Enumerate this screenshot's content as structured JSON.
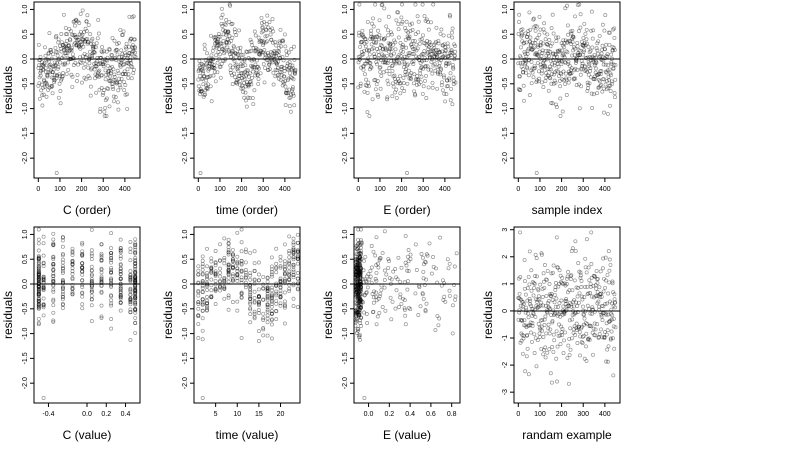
{
  "figure": {
    "ylabel": "residuals"
  },
  "chart_data": [
    {
      "type": "scatter",
      "xlabel": "C (order)",
      "ylabel": "residuals",
      "xlim": [
        -20,
        470
      ],
      "ylim": [
        -2.4,
        1.15
      ],
      "xticks": [
        0,
        100,
        200,
        300,
        400
      ],
      "xtick_labels": [
        "0",
        "100",
        "200",
        "300",
        "400"
      ],
      "yticks": [
        -2.0,
        -1.5,
        -1.0,
        -0.5,
        0.0,
        0.5,
        1.0
      ],
      "ytick_labels": [
        "-2.0",
        "-1.5",
        "-1.0",
        "-0.5",
        "0.0",
        "0.5",
        "1.0"
      ],
      "reference_line_y": 0,
      "n_points": 450,
      "pattern": "sinusoidal trend over index: about -0.3 near 0, peak about 0.4 near 250, about -0.2 near 400",
      "outliers": [
        {
          "x": 85,
          "y": -2.3
        }
      ],
      "points_note": "individual residual values are not printed; representative points in script"
    },
    {
      "type": "scatter",
      "xlabel": "time (order)",
      "ylabel": "residuals",
      "xlim": [
        -20,
        470
      ],
      "ylim": [
        -2.4,
        1.15
      ],
      "xticks": [
        0,
        100,
        200,
        300,
        400
      ],
      "xtick_labels": [
        "0",
        "100",
        "200",
        "300",
        "400"
      ],
      "yticks": [
        -2.0,
        -1.5,
        -1.0,
        -0.5,
        0.0,
        0.5,
        1.0
      ],
      "ytick_labels": [
        "-2.0",
        "-1.5",
        "-1.0",
        "-0.5",
        "0.0",
        "0.5",
        "1.0"
      ],
      "reference_line_y": 0,
      "n_points": 450,
      "pattern": "periodic: peaks near 120 and 320, troughs near 0, 220 and 450",
      "outliers": [
        {
          "x": 10,
          "y": -2.3
        }
      ],
      "points_note": "individual residual values are not printed; representative points in script"
    },
    {
      "type": "scatter",
      "xlabel": "E (order)",
      "ylabel": "residuals",
      "xlim": [
        -20,
        470
      ],
      "ylim": [
        -2.4,
        1.15
      ],
      "xticks": [
        0,
        100,
        200,
        300,
        400
      ],
      "xtick_labels": [
        "0",
        "100",
        "200",
        "300",
        "400"
      ],
      "yticks": [
        -2.0,
        -1.5,
        -1.0,
        -0.5,
        0.0,
        0.5,
        1.0
      ],
      "ytick_labels": [
        "-2.0",
        "-1.5",
        "-1.0",
        "-0.5",
        "0.0",
        "0.5",
        "1.0"
      ],
      "reference_line_y": 0,
      "n_points": 450,
      "pattern": "no trend, points scattered between -1.0 and 1.0",
      "outliers": [
        {
          "x": 225,
          "y": -2.3
        }
      ],
      "points_note": "individual residual values are not printed; representative points in script"
    },
    {
      "type": "scatter",
      "xlabel": "sample index",
      "ylabel": "residuals",
      "xlim": [
        -20,
        470
      ],
      "ylim": [
        -2.4,
        1.15
      ],
      "xticks": [
        0,
        100,
        200,
        300,
        400
      ],
      "xtick_labels": [
        "0",
        "100",
        "200",
        "300",
        "400"
      ],
      "yticks": [
        -2.0,
        -1.5,
        -1.0,
        -0.5,
        0.0,
        0.5,
        1.0
      ],
      "ytick_labels": [
        "-2.0",
        "-1.5",
        "-1.0",
        "-0.5",
        "0.0",
        "0.5",
        "1.0"
      ],
      "reference_line_y": 0,
      "n_points": 450,
      "pattern": "mild waviness around 0, most points between -1.0 and 1.0",
      "outliers": [
        {
          "x": 85,
          "y": -2.3
        }
      ],
      "points_note": "individual residual values are not printed; representative points in script"
    },
    {
      "type": "scatter",
      "xlabel": "C (value)",
      "ylabel": "residuals",
      "xlim": [
        -0.55,
        0.55
      ],
      "ylim": [
        -2.4,
        1.15
      ],
      "xticks": [
        -0.4,
        0.0,
        0.2,
        0.4
      ],
      "xtick_labels": [
        "-0.4",
        "0.0",
        "0.2",
        "0.4"
      ],
      "yticks": [
        -2.0,
        -1.5,
        -1.0,
        -0.5,
        0.0,
        0.5,
        1.0
      ],
      "ytick_labels": [
        "-2.0",
        "-1.5",
        "-1.0",
        "-0.5",
        "0.0",
        "0.5",
        "1.0"
      ],
      "reference_line_y": 0,
      "n_points": 450,
      "pattern": "points at discrete x levels, dense vertical stacks at -0.5 and 0.5",
      "outliers": [
        {
          "x": -0.45,
          "y": -2.3
        }
      ],
      "points_note": "individual residual values are not printed; representative points in script"
    },
    {
      "type": "scatter",
      "xlabel": "time (value)",
      "ylabel": "residuals",
      "xlim": [
        0,
        24.5
      ],
      "ylim": [
        -2.4,
        1.15
      ],
      "xticks": [
        5,
        10,
        15,
        20
      ],
      "xtick_labels": [
        "5",
        "10",
        "15",
        "20"
      ],
      "yticks": [
        -2.0,
        -1.5,
        -1.0,
        -0.5,
        0.0,
        0.5,
        1.0
      ],
      "ytick_labels": [
        "-2.0",
        "-1.5",
        "-1.0",
        "-0.5",
        "0.0",
        "0.5",
        "1.0"
      ],
      "reference_line_y": 0,
      "n_points": 450,
      "pattern": "points at integer x values 1 to 24, periodic over the day",
      "outliers": [
        {
          "x": 2,
          "y": -2.3
        }
      ],
      "points_note": "individual residual values are not printed; representative points in script"
    },
    {
      "type": "scatter",
      "xlabel": "E (value)",
      "ylabel": "residuals",
      "xlim": [
        -0.14,
        0.88
      ],
      "ylim": [
        -2.4,
        1.15
      ],
      "xticks": [
        0.0,
        0.2,
        0.4,
        0.6,
        0.8
      ],
      "xtick_labels": [
        "0.0",
        "0.2",
        "0.4",
        "0.6",
        "0.8"
      ],
      "yticks": [
        -2.0,
        -1.5,
        -1.0,
        -0.5,
        0.0,
        0.5,
        1.0
      ],
      "ytick_labels": [
        "-2.0",
        "-1.5",
        "-1.0",
        "-0.5",
        "0.0",
        "0.5",
        "1.0"
      ],
      "reference_line_y": 0,
      "n_points": 450,
      "pattern": "dense cluster near x = -0.1, sparse points out to 0.8",
      "outliers": [
        {
          "x": -0.04,
          "y": -2.3
        }
      ],
      "points_note": "individual residual values are not printed; representative points in script"
    },
    {
      "type": "scatter",
      "xlabel": "randam example",
      "ylabel": "residuals",
      "xlim": [
        -20,
        470
      ],
      "ylim": [
        -3.4,
        3.1
      ],
      "xticks": [
        0,
        100,
        200,
        300,
        400
      ],
      "xtick_labels": [
        "0",
        "100",
        "200",
        "300",
        "400"
      ],
      "yticks": [
        -3,
        -2,
        -1,
        0,
        1,
        2,
        3
      ],
      "ytick_labels": [
        "-3",
        "-2",
        "-1",
        "0",
        "1",
        "2",
        "3"
      ],
      "reference_line_y": 0,
      "n_points": 450,
      "pattern": "random noise, no structure, roughly between -3 and 3",
      "outliers": [],
      "points_note": "individual residual values are not printed; representative points in script"
    }
  ]
}
